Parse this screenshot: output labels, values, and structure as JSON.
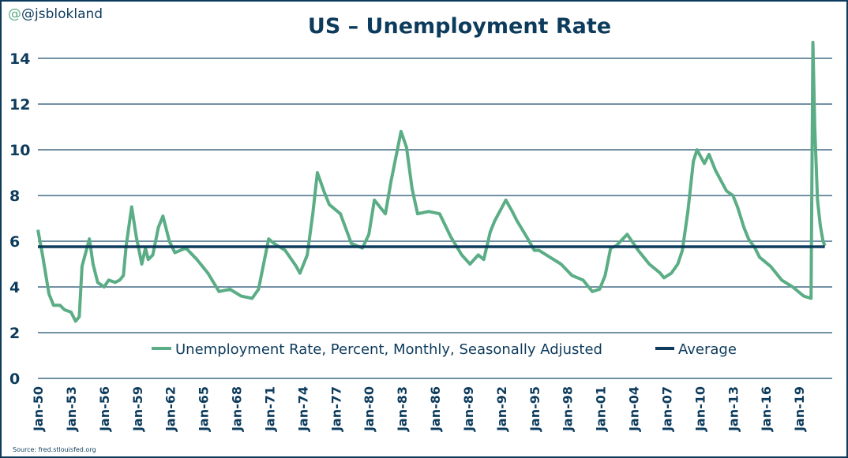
{
  "handle": "@jsblokland",
  "title": "US – Unemployment Rate",
  "source": "Source: fred.stlouisfed.org",
  "chart_data": {
    "type": "line",
    "title": "US – Unemployment Rate",
    "xlabel": "",
    "ylabel": "",
    "ylim": [
      0,
      14
    ],
    "xlim": [
      "1950-01",
      "2022-01"
    ],
    "grid": true,
    "legend_position": "bottom-center",
    "y_ticks": [
      "0",
      "2",
      "4",
      "6",
      "8",
      "10",
      "12",
      "14"
    ],
    "x_ticks": [
      "Jan-50",
      "Jan-53",
      "Jan-56",
      "Jan-59",
      "Jan-62",
      "Jan-65",
      "Jan-68",
      "Jan-71",
      "Jan-74",
      "Jan-77",
      "Jan-80",
      "Jan-83",
      "Jan-86",
      "Jan-89",
      "Jan-92",
      "Jan-95",
      "Jan-98",
      "Jan-01",
      "Jan-04",
      "Jan-07",
      "Jan-10",
      "Jan-13",
      "Jan-16",
      "Jan-19"
    ],
    "colors": {
      "series": "#5aad85",
      "average": "#0d3b5c",
      "grid": "#1f4e6e",
      "text": "#0d3b5c"
    },
    "series": [
      {
        "name": "Unemployment Rate, Percent, Monthly, Seasonally Adjusted",
        "points": [
          [
            "1950-01",
            6.5
          ],
          [
            "1950-06",
            5.4
          ],
          [
            "1951-01",
            3.7
          ],
          [
            "1951-06",
            3.2
          ],
          [
            "1952-01",
            3.2
          ],
          [
            "1952-06",
            3.0
          ],
          [
            "1953-01",
            2.9
          ],
          [
            "1953-06",
            2.5
          ],
          [
            "1953-10",
            2.7
          ],
          [
            "1954-01",
            4.9
          ],
          [
            "1954-09",
            6.1
          ],
          [
            "1955-01",
            5.0
          ],
          [
            "1955-06",
            4.2
          ],
          [
            "1956-01",
            4.0
          ],
          [
            "1956-06",
            4.3
          ],
          [
            "1957-01",
            4.2
          ],
          [
            "1957-06",
            4.3
          ],
          [
            "1957-10",
            4.5
          ],
          [
            "1958-01",
            5.8
          ],
          [
            "1958-07",
            7.5
          ],
          [
            "1958-12",
            6.2
          ],
          [
            "1959-06",
            5.0
          ],
          [
            "1959-10",
            5.7
          ],
          [
            "1960-01",
            5.2
          ],
          [
            "1960-06",
            5.4
          ],
          [
            "1960-12",
            6.6
          ],
          [
            "1961-05",
            7.1
          ],
          [
            "1961-12",
            6.0
          ],
          [
            "1962-06",
            5.5
          ],
          [
            "1963-06",
            5.7
          ],
          [
            "1964-06",
            5.2
          ],
          [
            "1965-06",
            4.6
          ],
          [
            "1966-06",
            3.8
          ],
          [
            "1967-06",
            3.9
          ],
          [
            "1968-06",
            3.6
          ],
          [
            "1969-06",
            3.5
          ],
          [
            "1970-01",
            3.9
          ],
          [
            "1970-12",
            6.1
          ],
          [
            "1971-06",
            5.9
          ],
          [
            "1972-06",
            5.6
          ],
          [
            "1973-06",
            4.9
          ],
          [
            "1973-10",
            4.6
          ],
          [
            "1974-06",
            5.4
          ],
          [
            "1974-12",
            7.2
          ],
          [
            "1975-05",
            9.0
          ],
          [
            "1975-12",
            8.2
          ],
          [
            "1976-06",
            7.6
          ],
          [
            "1977-06",
            7.2
          ],
          [
            "1978-06",
            5.9
          ],
          [
            "1979-06",
            5.7
          ],
          [
            "1980-01",
            6.3
          ],
          [
            "1980-07",
            7.8
          ],
          [
            "1981-01",
            7.5
          ],
          [
            "1981-07",
            7.2
          ],
          [
            "1982-01",
            8.6
          ],
          [
            "1982-06",
            9.6
          ],
          [
            "1982-12",
            10.8
          ],
          [
            "1983-06",
            10.1
          ],
          [
            "1983-12",
            8.3
          ],
          [
            "1984-06",
            7.2
          ],
          [
            "1985-06",
            7.3
          ],
          [
            "1986-06",
            7.2
          ],
          [
            "1987-06",
            6.2
          ],
          [
            "1988-06",
            5.4
          ],
          [
            "1989-03",
            5.0
          ],
          [
            "1989-12",
            5.4
          ],
          [
            "1990-06",
            5.2
          ],
          [
            "1991-01",
            6.4
          ],
          [
            "1991-06",
            6.9
          ],
          [
            "1992-06",
            7.8
          ],
          [
            "1993-01",
            7.3
          ],
          [
            "1993-06",
            6.9
          ],
          [
            "1994-06",
            6.1
          ],
          [
            "1995-01",
            5.6
          ],
          [
            "1995-06",
            5.6
          ],
          [
            "1996-06",
            5.3
          ],
          [
            "1997-06",
            5.0
          ],
          [
            "1998-06",
            4.5
          ],
          [
            "1999-06",
            4.3
          ],
          [
            "2000-04",
            3.8
          ],
          [
            "2000-12",
            3.9
          ],
          [
            "2001-06",
            4.5
          ],
          [
            "2001-12",
            5.7
          ],
          [
            "2002-06",
            5.8
          ],
          [
            "2003-06",
            6.3
          ],
          [
            "2004-06",
            5.6
          ],
          [
            "2005-06",
            5.0
          ],
          [
            "2006-06",
            4.6
          ],
          [
            "2006-10",
            4.4
          ],
          [
            "2007-06",
            4.6
          ],
          [
            "2008-01",
            5.0
          ],
          [
            "2008-06",
            5.6
          ],
          [
            "2008-12",
            7.3
          ],
          [
            "2009-06",
            9.5
          ],
          [
            "2009-10",
            10.0
          ],
          [
            "2010-06",
            9.4
          ],
          [
            "2010-11",
            9.8
          ],
          [
            "2011-06",
            9.1
          ],
          [
            "2012-06",
            8.2
          ],
          [
            "2013-01",
            8.0
          ],
          [
            "2013-06",
            7.5
          ],
          [
            "2014-01",
            6.6
          ],
          [
            "2014-06",
            6.1
          ],
          [
            "2015-01",
            5.7
          ],
          [
            "2015-06",
            5.3
          ],
          [
            "2016-06",
            4.9
          ],
          [
            "2017-06",
            4.3
          ],
          [
            "2018-06",
            4.0
          ],
          [
            "2019-06",
            3.6
          ],
          [
            "2020-02",
            3.5
          ],
          [
            "2020-04",
            14.7
          ],
          [
            "2020-06",
            11.0
          ],
          [
            "2020-09",
            7.8
          ],
          [
            "2020-12",
            6.7
          ],
          [
            "2021-03",
            6.0
          ],
          [
            "2021-05",
            5.8
          ]
        ]
      },
      {
        "name": "Average",
        "points": [
          [
            "1950-01",
            5.76
          ],
          [
            "2021-05",
            5.76
          ]
        ]
      }
    ]
  }
}
